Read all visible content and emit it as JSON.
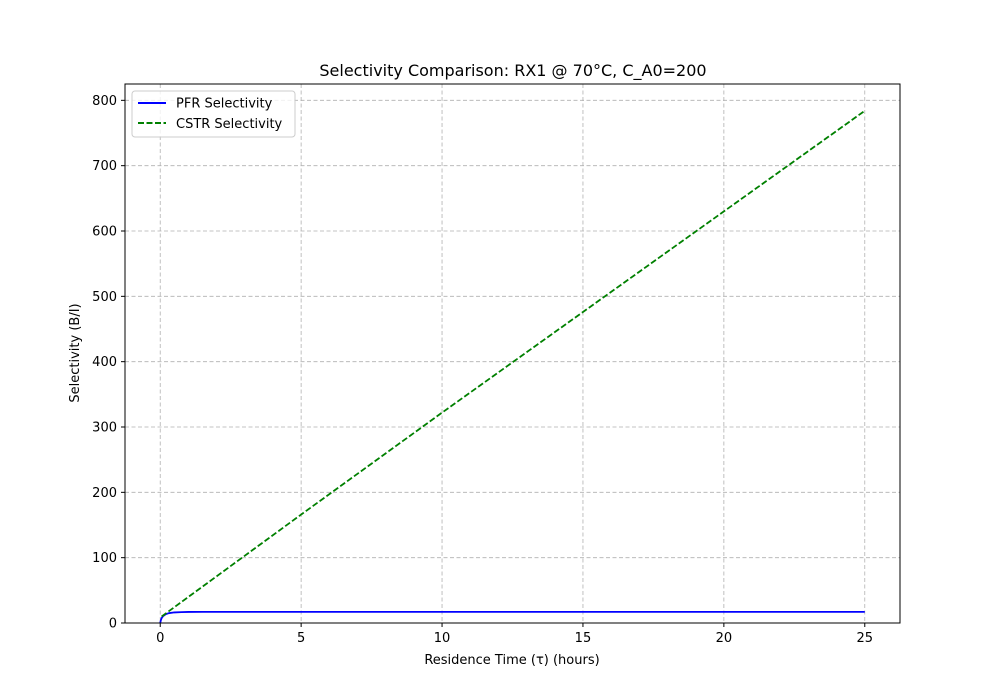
{
  "chart_data": {
    "type": "line",
    "title": "Selectivity Comparison: RX1 @ 70°C, C_A0=200",
    "xlabel": "Residence Time (τ) (hours)",
    "ylabel": "Selectivity (B/I)",
    "xlim": [
      -1.25,
      26.25
    ],
    "ylim": [
      0,
      825
    ],
    "xticks": [
      0,
      5,
      10,
      15,
      20,
      25
    ],
    "yticks": [
      0,
      100,
      200,
      300,
      400,
      500,
      600,
      700,
      800
    ],
    "grid": true,
    "legend_position": "upper-left",
    "series": [
      {
        "name": "PFR Selectivity",
        "color": "#0000ff",
        "linestyle": "solid",
        "x": [
          0,
          0.02,
          0.05,
          0.1,
          0.2,
          0.3,
          0.5,
          0.75,
          1,
          1.5,
          2,
          5,
          10,
          15,
          20,
          25
        ],
        "y": [
          0,
          4,
          7.5,
          10.5,
          13.5,
          15,
          16.2,
          16.7,
          16.9,
          17,
          17,
          17,
          17,
          17,
          17,
          17
        ]
      },
      {
        "name": "CSTR Selectivity",
        "color": "#008000",
        "linestyle": "dashed",
        "x": [
          0.05,
          5,
          10,
          15,
          20,
          25
        ],
        "y": [
          10,
          166,
          322,
          476,
          630,
          784
        ]
      }
    ]
  }
}
